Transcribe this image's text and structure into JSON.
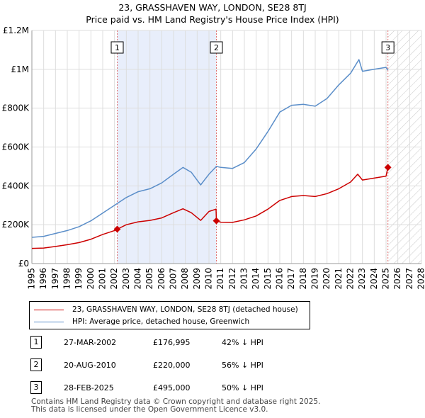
{
  "chart_data": {
    "type": "line",
    "title": "23, GRASSHAVEN WAY, LONDON, SE28 8TJ",
    "subtitle": "Price paid vs. HM Land Registry's House Price Index (HPI)",
    "xlim": [
      1995,
      2028
    ],
    "ylim": [
      0,
      1200000
    ],
    "x_ticks": [
      1995,
      1996,
      1997,
      1998,
      1999,
      2000,
      2001,
      2002,
      2003,
      2004,
      2005,
      2006,
      2007,
      2008,
      2009,
      2010,
      2011,
      2012,
      2013,
      2014,
      2015,
      2016,
      2017,
      2018,
      2019,
      2020,
      2021,
      2022,
      2023,
      2024,
      2025,
      2026,
      2027,
      2028
    ],
    "y_ticks": [
      {
        "value": 0,
        "label": "£0"
      },
      {
        "value": 200000,
        "label": "£200K"
      },
      {
        "value": 400000,
        "label": "£400K"
      },
      {
        "value": 600000,
        "label": "£600K"
      },
      {
        "value": 800000,
        "label": "£800K"
      },
      {
        "value": 1000000,
        "label": "£1M"
      },
      {
        "value": 1200000,
        "label": "£1.2M"
      }
    ],
    "shaded_period": [
      2002.23,
      2010.63
    ],
    "forecast_from": 2025.16,
    "series": [
      {
        "name": "23, GRASSHAVEN WAY, LONDON, SE28 8TJ (detached house)",
        "color": "#cc0000",
        "points": [
          [
            1995,
            78000
          ],
          [
            1996,
            80000
          ],
          [
            1997,
            88000
          ],
          [
            1998,
            97000
          ],
          [
            1999,
            108000
          ],
          [
            2000,
            125000
          ],
          [
            2001,
            150000
          ],
          [
            2002,
            170000
          ],
          [
            2002.23,
            176995
          ],
          [
            2003,
            200000
          ],
          [
            2004,
            215000
          ],
          [
            2005,
            222000
          ],
          [
            2006,
            235000
          ],
          [
            2007,
            262000
          ],
          [
            2007.8,
            282000
          ],
          [
            2008.5,
            262000
          ],
          [
            2009.3,
            222000
          ],
          [
            2010,
            268000
          ],
          [
            2010.6,
            280000
          ],
          [
            2010.63,
            220000
          ],
          [
            2011,
            213000
          ],
          [
            2012,
            212000
          ],
          [
            2013,
            225000
          ],
          [
            2014,
            245000
          ],
          [
            2015,
            280000
          ],
          [
            2016,
            325000
          ],
          [
            2017,
            345000
          ],
          [
            2018,
            350000
          ],
          [
            2019,
            345000
          ],
          [
            2020,
            360000
          ],
          [
            2021,
            385000
          ],
          [
            2022,
            420000
          ],
          [
            2022.6,
            460000
          ],
          [
            2023,
            430000
          ],
          [
            2024,
            440000
          ],
          [
            2025,
            450000
          ],
          [
            2025.16,
            495000
          ]
        ]
      },
      {
        "name": "HPI: Average price, detached house, Greenwich",
        "color": "#5b8ec9",
        "points": [
          [
            1995,
            135000
          ],
          [
            1996,
            140000
          ],
          [
            1997,
            155000
          ],
          [
            1998,
            170000
          ],
          [
            1999,
            190000
          ],
          [
            2000,
            220000
          ],
          [
            2001,
            260000
          ],
          [
            2002,
            300000
          ],
          [
            2003,
            340000
          ],
          [
            2004,
            370000
          ],
          [
            2005,
            385000
          ],
          [
            2006,
            415000
          ],
          [
            2007,
            460000
          ],
          [
            2007.8,
            495000
          ],
          [
            2008.5,
            470000
          ],
          [
            2009.3,
            405000
          ],
          [
            2010,
            460000
          ],
          [
            2010.63,
            500000
          ],
          [
            2011,
            495000
          ],
          [
            2012,
            490000
          ],
          [
            2013,
            520000
          ],
          [
            2014,
            590000
          ],
          [
            2015,
            680000
          ],
          [
            2016,
            780000
          ],
          [
            2017,
            815000
          ],
          [
            2018,
            820000
          ],
          [
            2019,
            810000
          ],
          [
            2020,
            850000
          ],
          [
            2021,
            920000
          ],
          [
            2022,
            980000
          ],
          [
            2022.7,
            1050000
          ],
          [
            2023,
            990000
          ],
          [
            2024,
            1000000
          ],
          [
            2025,
            1010000
          ],
          [
            2025.16,
            995000
          ]
        ]
      }
    ],
    "sales": [
      {
        "label": "1",
        "date": 2002.23,
        "price": 176995
      },
      {
        "label": "2",
        "date": 2010.63,
        "price": 220000
      },
      {
        "label": "3",
        "date": 2025.16,
        "price": 495000
      }
    ]
  },
  "legend": {
    "property_label": "23, GRASSHAVEN WAY, LONDON, SE28 8TJ (detached house)",
    "hpi_label": "HPI: Average price, detached house, Greenwich"
  },
  "transactions": [
    {
      "num": "1",
      "date": "27-MAR-2002",
      "price": "£176,995",
      "hpi": "42% ↓ HPI"
    },
    {
      "num": "2",
      "date": "20-AUG-2010",
      "price": "£220,000",
      "hpi": "56% ↓ HPI"
    },
    {
      "num": "3",
      "date": "28-FEB-2025",
      "price": "£495,000",
      "hpi": "50% ↓ HPI"
    }
  ],
  "footer": {
    "line1": "Contains HM Land Registry data © Crown copyright and database right 2025.",
    "line2": "This data is licensed under the Open Government Licence v3.0."
  }
}
